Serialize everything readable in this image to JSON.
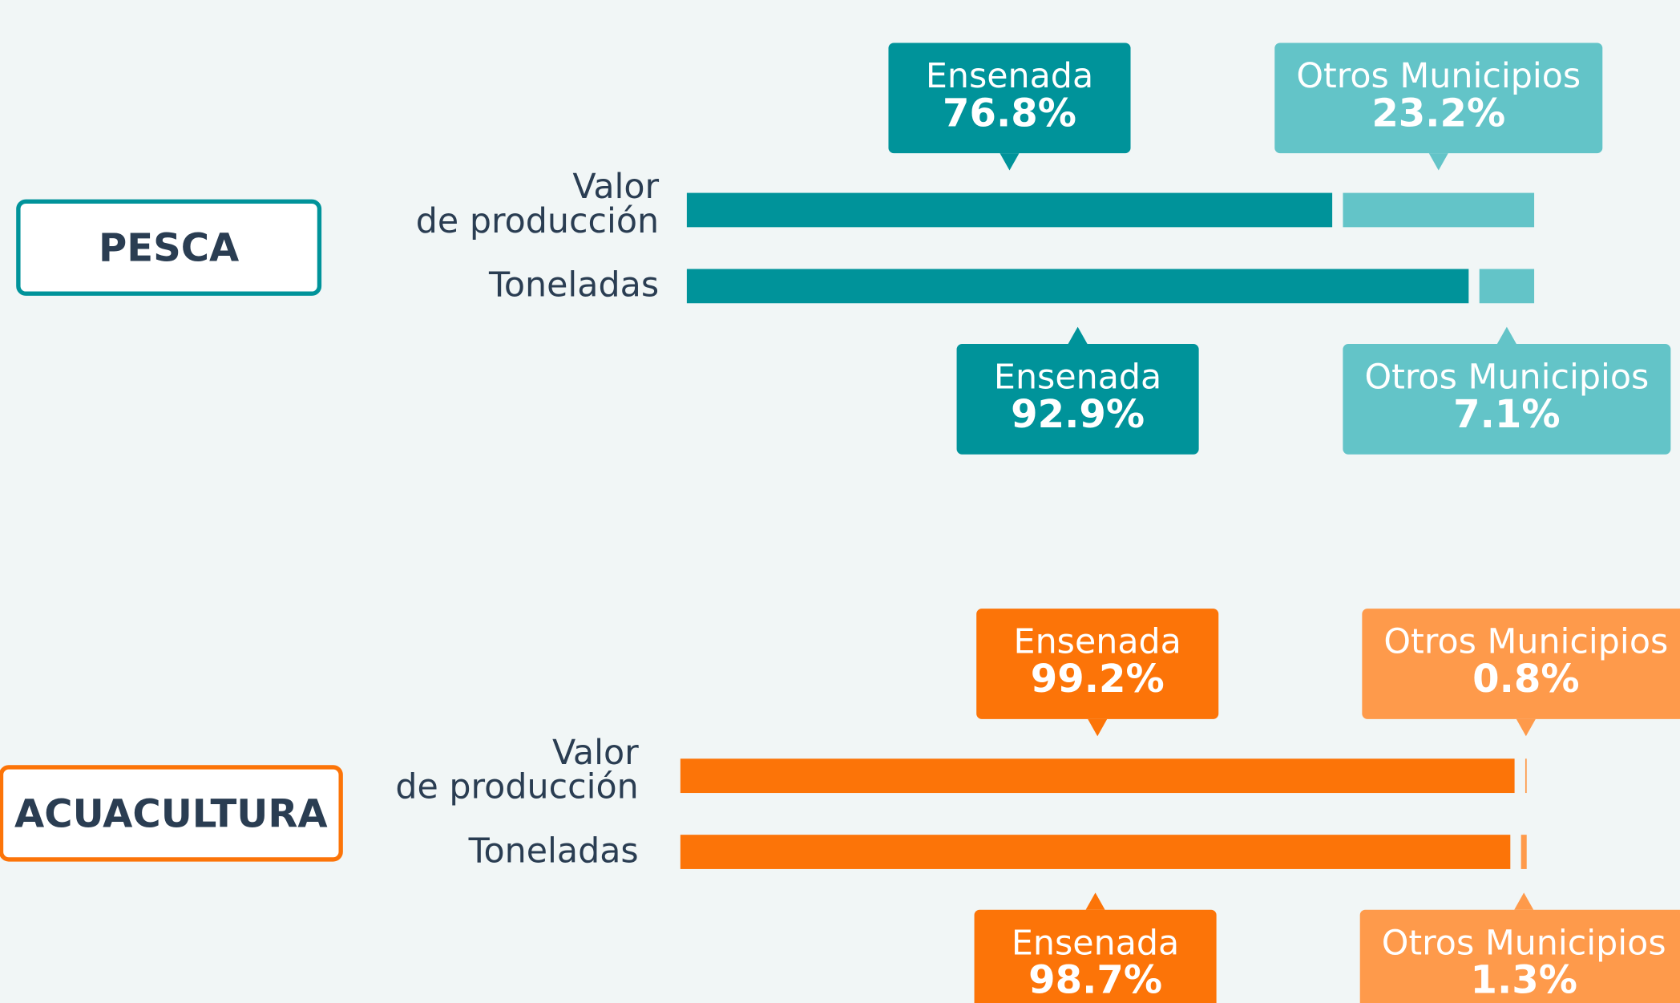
{
  "chart_data": [
    {
      "type": "bar",
      "orientation": "horizontal",
      "stacked": true,
      "title": "PESCA",
      "categories": [
        "Valor de producción",
        "Toneladas"
      ],
      "xlim": [
        0,
        100
      ],
      "color": "#00939a",
      "series": [
        {
          "name": "Ensenada",
          "color": "#00939a",
          "values": [
            76.8,
            92.9
          ],
          "value_labels": [
            "76.8%",
            "92.9%"
          ]
        },
        {
          "name": "Otros Municipios",
          "color": "#63c4c8",
          "values": [
            23.2,
            7.1
          ],
          "value_labels": [
            "23.2%",
            "7.1%"
          ]
        }
      ]
    },
    {
      "type": "bar",
      "orientation": "horizontal",
      "stacked": true,
      "title": "ACUACULTURA",
      "categories": [
        "Valor de producción",
        "Toneladas"
      ],
      "xlim": [
        0,
        100
      ],
      "color": "#fc7408",
      "series": [
        {
          "name": "Ensenada",
          "color": "#fc7408",
          "values": [
            99.2,
            98.7
          ],
          "value_labels": [
            "99.2%",
            "98.7%"
          ]
        },
        {
          "name": "Otros Municipios",
          "color": "#fe9a4b",
          "values": [
            0.8,
            1.3
          ],
          "value_labels": [
            "0.8%",
            "1.3%"
          ]
        }
      ]
    }
  ]
}
